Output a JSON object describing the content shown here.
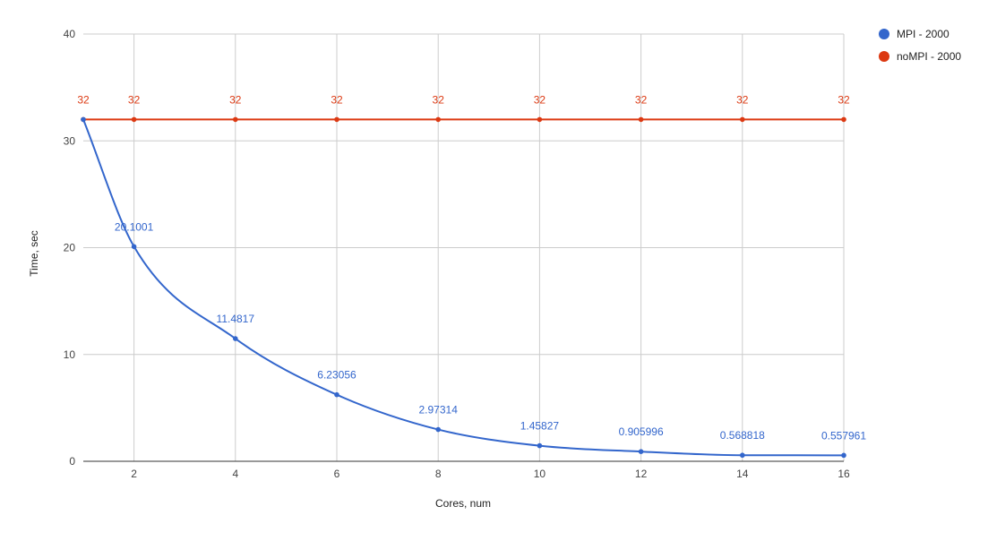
{
  "chart_data": {
    "type": "line",
    "title": "",
    "xlabel": "Cores, num",
    "ylabel": "Time, sec",
    "xlim": [
      1,
      16
    ],
    "ylim": [
      0,
      40
    ],
    "x_ticks": [
      2,
      4,
      6,
      8,
      10,
      12,
      14,
      16
    ],
    "y_ticks": [
      0,
      10,
      20,
      30,
      40
    ],
    "grid": true,
    "legend_position": "right",
    "x": [
      1,
      2,
      4,
      6,
      8,
      10,
      12,
      14,
      16
    ],
    "series": [
      {
        "name": "MPI - 2000",
        "color": "#3366cc",
        "smooth": true,
        "values": [
          32,
          20.1001,
          11.4817,
          6.23056,
          2.97314,
          1.45827,
          0.905996,
          0.568818,
          0.557961
        ],
        "labels": [
          "",
          "20.1001",
          "11.4817",
          "6.23056",
          "2.97314",
          "1.45827",
          "0.905996",
          "0.568818",
          "0.557961"
        ]
      },
      {
        "name": "noMPI - 2000",
        "color": "#dc3912",
        "smooth": false,
        "values": [
          32,
          32,
          32,
          32,
          32,
          32,
          32,
          32,
          32
        ],
        "labels": [
          "32",
          "32",
          "32",
          "32",
          "32",
          "32",
          "32",
          "32",
          "32"
        ]
      }
    ]
  }
}
